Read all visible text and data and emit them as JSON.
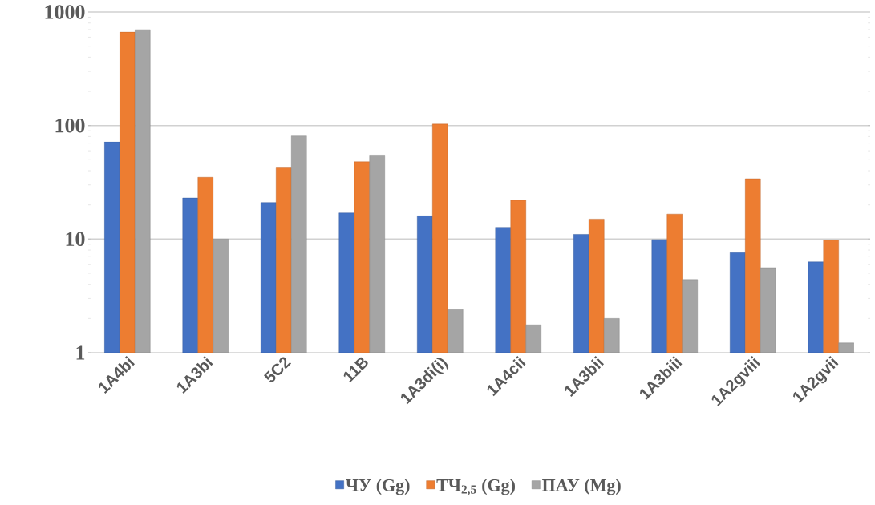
{
  "chart_data": {
    "type": "bar",
    "categories": [
      "1A4bi",
      "1A3bi",
      "5C2",
      "11B",
      "1A3di(i)",
      "1A4cii",
      "1A3bii",
      "1A3biii",
      "1A2gviii",
      "1A2gvii"
    ],
    "series": [
      {
        "name": "ЧУ (Gg)",
        "color": "#4472c4",
        "values": [
          72,
          23,
          21,
          17,
          16,
          12.7,
          11,
          9.9,
          7.6,
          6.3
        ]
      },
      {
        "name": "ТЧ$_{2,5}$ (Gg)",
        "color": "#ed7d31",
        "values": [
          665,
          35,
          43,
          48,
          103,
          22,
          15,
          16.6,
          34,
          9.8
        ]
      },
      {
        "name": "ПАУ (Mg)",
        "color": "#a5a5a5",
        "values": [
          700,
          10,
          81,
          55,
          2.4,
          1.76,
          2.0,
          4.4,
          5.6,
          1.22
        ]
      }
    ],
    "log": true,
    "ylim": [
      1,
      1000
    ],
    "yticks": [
      1,
      10,
      100,
      1000
    ],
    "grid": "y",
    "legend": "bottom"
  }
}
